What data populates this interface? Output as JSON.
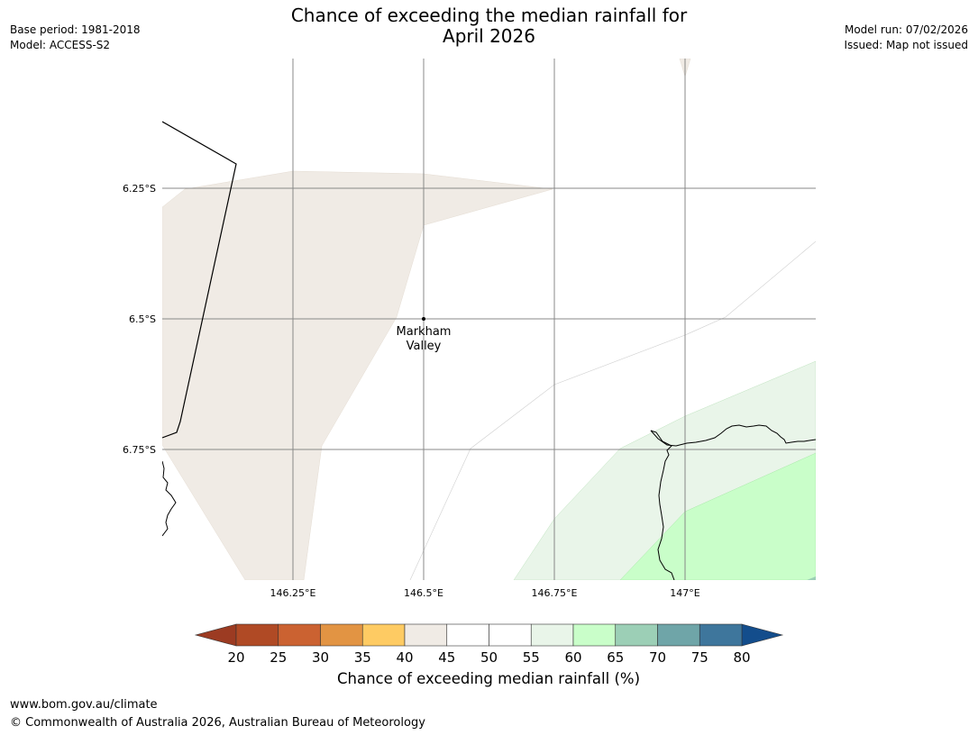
{
  "header": {
    "title_line1": "Chance of exceeding the median rainfall for",
    "title_line2": "April 2026",
    "base_period": "Base period: 1981-2018",
    "model": "Model: ACCESS-S2",
    "model_run": "Model run: 07/02/2026",
    "issued": "Issued: Map not issued"
  },
  "map": {
    "lat_labels": [
      "6.25°S",
      "6.5°S",
      "6.75°S"
    ],
    "lon_labels": [
      "146.25°E",
      "146.5°E",
      "146.75°E",
      "147°E"
    ],
    "place": {
      "name_line1": "Markham",
      "name_line2": "Valley"
    }
  },
  "colorbar": {
    "label": "Chance of exceeding median rainfall (%)",
    "ticks": [
      "20",
      "25",
      "30",
      "35",
      "40",
      "45",
      "50",
      "55",
      "60",
      "65",
      "70",
      "75",
      "80"
    ],
    "colors": {
      "under": "#9c3b22",
      "bins": [
        "#b04a25",
        "#cb6231",
        "#e29443",
        "#fecb63",
        "#f0ebe5",
        "#ffffff",
        "#ffffff",
        "#e9f5e9",
        "#c9fec9",
        "#9ccfb6",
        "#6fa5a8",
        "#3e769c"
      ],
      "over": "#134d8c"
    }
  },
  "footer": {
    "url": "www.bom.gov.au/climate",
    "copyright": "© Commonwealth of Australia 2026, Australian Bureau of Meteorology"
  }
}
